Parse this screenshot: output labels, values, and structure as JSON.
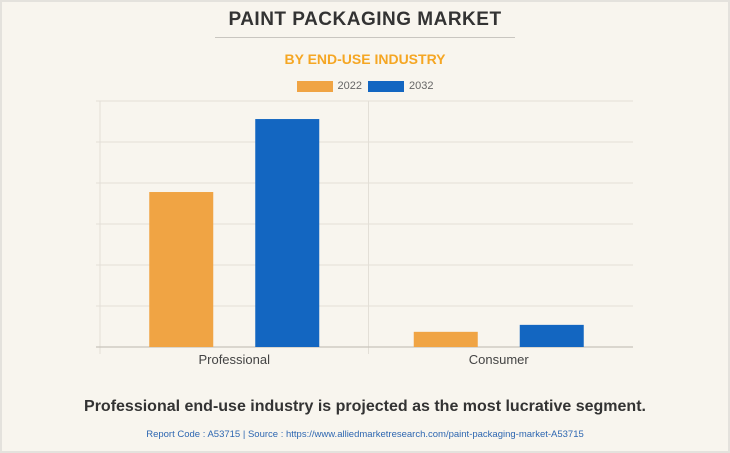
{
  "title": "PAINT PACKAGING MARKET",
  "subtitle": "BY END-USE INDUSTRY",
  "footer": {
    "headline": "Professional end-use industry is projected as the most lucrative segment.",
    "source": "Report Code : A53715  |  Source : https://www.alliedmarketresearch.com/paint-packaging-market-A53715"
  },
  "colors": {
    "2022": "#f0a444",
    "2032": "#1366c1",
    "title": "#333333",
    "subtitle": "#f5a623",
    "grid": "#e3dfd7"
  },
  "chart_data": {
    "type": "bar",
    "title": "PAINT PACKAGING MARKET",
    "subtitle": "BY END-USE INDUSTRY",
    "xlabel": "",
    "ylabel": "",
    "categories": [
      "Professional",
      "Consumer"
    ],
    "series": [
      {
        "name": "2022",
        "values": [
          3.78,
          0.37
        ]
      },
      {
        "name": "2032",
        "values": [
          5.56,
          0.54
        ]
      }
    ],
    "ylim": [
      0,
      6
    ],
    "y_ticks_labeled": false,
    "grid": true,
    "legend_position": "top-center"
  }
}
